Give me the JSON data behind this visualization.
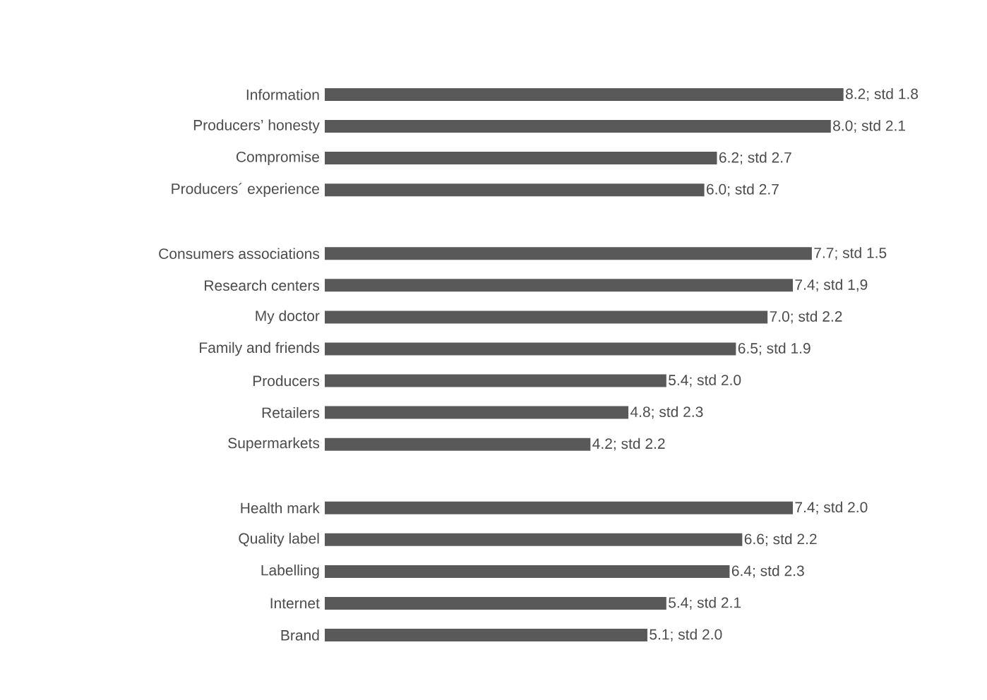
{
  "chart_data": {
    "type": "bar",
    "orientation": "horizontal",
    "color": "#595959",
    "categories": [
      "Information",
      "Producers’ honesty",
      "Compromise",
      "Producers´ experience",
      null,
      "Consumers associations",
      "Research centers",
      "My doctor",
      "Family and friends",
      "Producers",
      "Retailers",
      "Supermarkets",
      null,
      "Health mark",
      "Quality label",
      "Labelling",
      "Internet",
      "Brand"
    ],
    "values": [
      8.2,
      8.0,
      6.2,
      6.0,
      null,
      7.7,
      7.4,
      7.0,
      6.5,
      5.4,
      4.8,
      4.2,
      null,
      7.4,
      6.6,
      6.4,
      5.4,
      5.1
    ],
    "value_labels": [
      "8.2; std 1.8",
      "8.0; std 2.1",
      "6.2; std 2.7",
      "6.0; std 2.7",
      null,
      "7.7; std 1.5",
      "7.4; std 1,9",
      "7.0; std 2.2",
      "6.5; std 1.9",
      "5.4; std 2.0",
      "4.8; std 2.3",
      "4.2; std 2.2",
      null,
      "7.4; std 2.0",
      "6.6; std 2.2",
      "6.4; std 2.3",
      "5.4; std 2.1",
      "5.1; std 2.0"
    ]
  }
}
